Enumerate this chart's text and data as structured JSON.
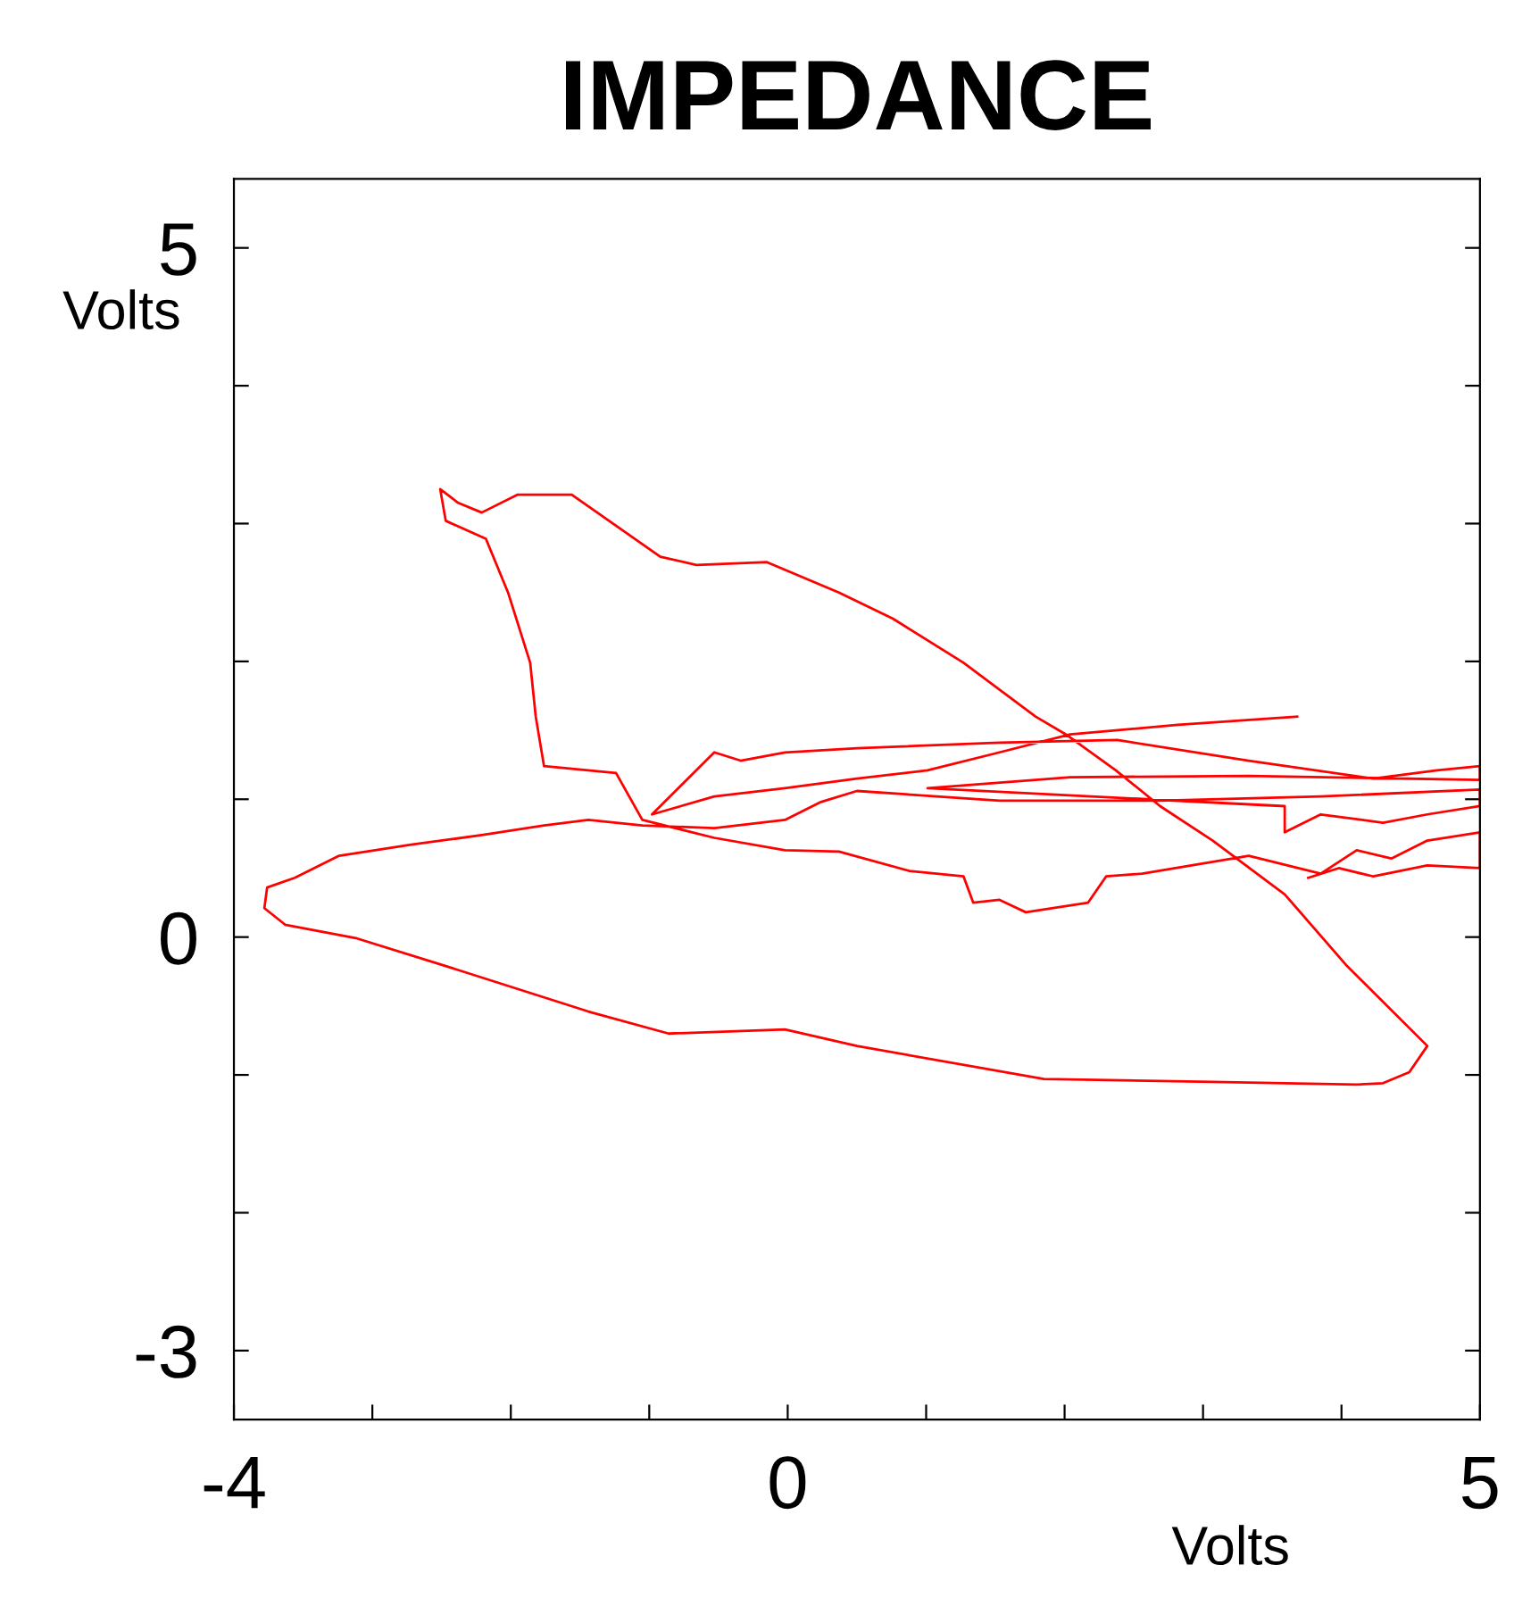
{
  "chart_data": {
    "type": "line",
    "title": "IMPEDANCE",
    "xlabel": "Volts",
    "ylabel": "Volts",
    "xlim": [
      -4,
      5
    ],
    "ylim": [
      -3.5,
      5.5
    ],
    "xticks": [
      -4,
      {
        "value": -3,
        "label": null
      },
      {
        "value": -2,
        "label": null
      },
      {
        "value": -1,
        "label": null
      },
      0,
      {
        "value": 1,
        "label": null
      },
      {
        "value": 2,
        "label": null
      },
      {
        "value": 3,
        "label": null
      },
      {
        "value": 4,
        "label": null
      },
      5
    ],
    "yticks": [
      -3,
      {
        "value": -2,
        "label": null
      },
      {
        "value": -1,
        "label": null
      },
      0,
      {
        "value": 1,
        "label": null
      },
      {
        "value": 2,
        "label": null
      },
      {
        "value": 3,
        "label": null
      },
      {
        "value": 4,
        "label": null
      },
      5
    ],
    "grid": false,
    "marker": "none",
    "line_style": "solid",
    "series": [
      {
        "color": "#ff0000",
        "x": [
          3.76,
          3.98,
          4.23,
          4.62,
          5.0,
          5.0,
          4.62,
          4.36,
          4.11,
          3.85,
          3.33,
          2.56,
          2.3,
          2.17,
          1.72,
          1.53,
          1.34,
          1.27,
          0.88,
          0.37,
          -0.02,
          -0.53,
          -1.05,
          -1.24,
          -1.76,
          -1.82,
          -1.86,
          -2.02,
          -2.18,
          -2.47,
          -2.51,
          -2.38,
          -2.21,
          -1.95,
          -1.56,
          -0.92,
          -0.66,
          -0.15,
          0.37,
          0.76,
          1.27,
          1.79,
          2.01,
          2.37,
          2.69,
          3.07,
          3.59,
          4.04,
          4.62,
          4.49,
          4.3,
          4.11,
          3.07,
          1.85,
          0.5,
          -0.02,
          -0.86,
          -1.44,
          -2.47,
          -3.11,
          -3.63,
          -3.78,
          -3.76,
          -3.56,
          -3.24,
          -2.72,
          -2.21,
          -1.76,
          -1.44,
          -1.05,
          -0.53,
          -0.02,
          0.24,
          0.5,
          1.53,
          2.69,
          3.85,
          5.0,
          5.0,
          4.62,
          4.3,
          3.85,
          3.59,
          3.59,
          1.01,
          2.04,
          3.33,
          5.0,
          5.0,
          4.69,
          4.23,
          3.33,
          2.38,
          1.53,
          0.5,
          -0.02,
          -0.34,
          -0.53,
          -0.98,
          -0.53,
          -0.02,
          0.5,
          1.01,
          1.53,
          2.04,
          2.82,
          3.68
        ],
        "values": [
          0.43,
          0.5,
          0.44,
          0.52,
          0.5,
          0.76,
          0.7,
          0.57,
          0.63,
          0.46,
          0.59,
          0.46,
          0.44,
          0.25,
          0.18,
          0.27,
          0.25,
          0.44,
          0.48,
          0.62,
          0.63,
          0.72,
          0.85,
          1.19,
          1.24,
          1.6,
          1.99,
          2.5,
          2.89,
          3.02,
          3.25,
          3.15,
          3.08,
          3.21,
          3.21,
          2.76,
          2.7,
          2.72,
          2.5,
          2.31,
          1.99,
          1.6,
          1.47,
          1.21,
          0.95,
          0.7,
          0.31,
          -0.21,
          -0.79,
          -0.98,
          -1.06,
          -1.07,
          -1.05,
          -1.03,
          -0.79,
          -0.67,
          -0.7,
          -0.54,
          -0.21,
          -0.01,
          0.09,
          0.21,
          0.36,
          0.43,
          0.59,
          0.67,
          0.74,
          0.81,
          0.85,
          0.81,
          0.79,
          0.85,
          0.98,
          1.06,
          0.99,
          0.99,
          1.02,
          1.07,
          0.95,
          0.89,
          0.83,
          0.89,
          0.76,
          0.95,
          1.08,
          1.16,
          1.17,
          1.14,
          1.24,
          1.21,
          1.15,
          1.28,
          1.43,
          1.41,
          1.37,
          1.34,
          1.28,
          1.34,
          0.89,
          1.02,
          1.08,
          1.15,
          1.21,
          1.34,
          1.47,
          1.54,
          1.6
        ]
      }
    ]
  }
}
